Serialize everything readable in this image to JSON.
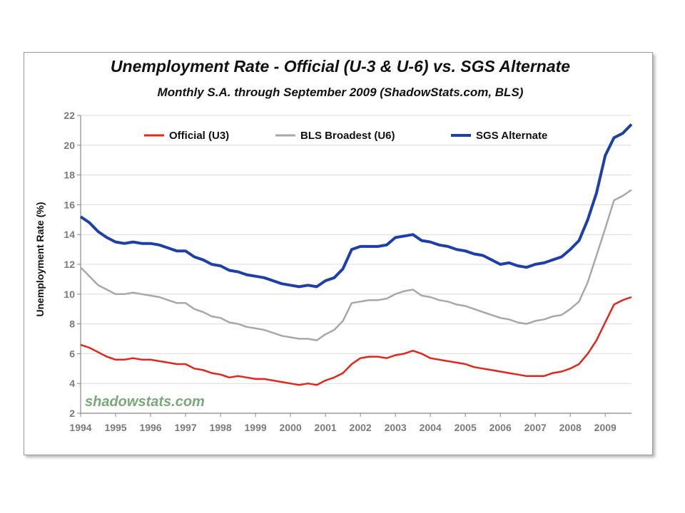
{
  "chart_data": {
    "type": "line",
    "title": "Unemployment Rate - Official (U-3 & U-6) vs. SGS Alternate",
    "subtitle": "Monthly S.A. through September 2009 (ShadowStats.com, BLS)",
    "ylabel": "Unemployment Rate (%)",
    "xlim": [
      1994,
      2009.75
    ],
    "ylim": [
      2,
      22
    ],
    "yticks": [
      2,
      4,
      6,
      8,
      10,
      12,
      14,
      16,
      18,
      20,
      22
    ],
    "xticks": [
      1994,
      1995,
      1996,
      1997,
      1998,
      1999,
      2000,
      2001,
      2002,
      2003,
      2004,
      2005,
      2006,
      2007,
      2008,
      2009
    ],
    "grid": true,
    "legend_position": "top",
    "watermark": "shadowstats.com",
    "series": [
      {
        "name": "Official (U3)",
        "color": "#e2261c",
        "x": [
          1994.0,
          1994.25,
          1994.5,
          1994.75,
          1995.0,
          1995.25,
          1995.5,
          1995.75,
          1996.0,
          1996.25,
          1996.5,
          1996.75,
          1997.0,
          1997.25,
          1997.5,
          1997.75,
          1998.0,
          1998.25,
          1998.5,
          1998.75,
          1999.0,
          1999.25,
          1999.5,
          1999.75,
          2000.0,
          2000.25,
          2000.5,
          2000.75,
          2001.0,
          2001.25,
          2001.5,
          2001.75,
          2002.0,
          2002.25,
          2002.5,
          2002.75,
          2003.0,
          2003.25,
          2003.5,
          2003.75,
          2004.0,
          2004.25,
          2004.5,
          2004.75,
          2005.0,
          2005.25,
          2005.5,
          2005.75,
          2006.0,
          2006.25,
          2006.5,
          2006.75,
          2007.0,
          2007.25,
          2007.5,
          2007.75,
          2008.0,
          2008.25,
          2008.5,
          2008.75,
          2009.0,
          2009.25,
          2009.5,
          2009.75
        ],
        "values": [
          6.6,
          6.4,
          6.1,
          5.8,
          5.6,
          5.6,
          5.7,
          5.6,
          5.6,
          5.5,
          5.4,
          5.3,
          5.3,
          5.0,
          4.9,
          4.7,
          4.6,
          4.4,
          4.5,
          4.4,
          4.3,
          4.3,
          4.2,
          4.1,
          4.0,
          3.9,
          4.0,
          3.9,
          4.2,
          4.4,
          4.7,
          5.3,
          5.7,
          5.8,
          5.8,
          5.7,
          5.9,
          6.0,
          6.2,
          6.0,
          5.7,
          5.6,
          5.5,
          5.4,
          5.3,
          5.1,
          5.0,
          4.9,
          4.8,
          4.7,
          4.6,
          4.5,
          4.5,
          4.5,
          4.7,
          4.8,
          5.0,
          5.3,
          6.0,
          6.9,
          8.1,
          9.3,
          9.6,
          9.8
        ]
      },
      {
        "name": "BLS Broadest (U6)",
        "color": "#a8a8a8",
        "x": [
          1994.0,
          1994.25,
          1994.5,
          1994.75,
          1995.0,
          1995.25,
          1995.5,
          1995.75,
          1996.0,
          1996.25,
          1996.5,
          1996.75,
          1997.0,
          1997.25,
          1997.5,
          1997.75,
          1998.0,
          1998.25,
          1998.5,
          1998.75,
          1999.0,
          1999.25,
          1999.5,
          1999.75,
          2000.0,
          2000.25,
          2000.5,
          2000.75,
          2001.0,
          2001.25,
          2001.5,
          2001.75,
          2002.0,
          2002.25,
          2002.5,
          2002.75,
          2003.0,
          2003.25,
          2003.5,
          2003.75,
          2004.0,
          2004.25,
          2004.5,
          2004.75,
          2005.0,
          2005.25,
          2005.5,
          2005.75,
          2006.0,
          2006.25,
          2006.5,
          2006.75,
          2007.0,
          2007.25,
          2007.5,
          2007.75,
          2008.0,
          2008.25,
          2008.5,
          2008.75,
          2009.0,
          2009.25,
          2009.5,
          2009.75
        ],
        "values": [
          11.8,
          11.2,
          10.6,
          10.3,
          10.0,
          10.0,
          10.1,
          10.0,
          9.9,
          9.8,
          9.6,
          9.4,
          9.4,
          9.0,
          8.8,
          8.5,
          8.4,
          8.1,
          8.0,
          7.8,
          7.7,
          7.6,
          7.4,
          7.2,
          7.1,
          7.0,
          7.0,
          6.9,
          7.3,
          7.6,
          8.2,
          9.4,
          9.5,
          9.6,
          9.6,
          9.7,
          10.0,
          10.2,
          10.3,
          9.9,
          9.8,
          9.6,
          9.5,
          9.3,
          9.2,
          9.0,
          8.8,
          8.6,
          8.4,
          8.3,
          8.1,
          8.0,
          8.2,
          8.3,
          8.5,
          8.6,
          9.0,
          9.5,
          10.8,
          12.6,
          14.4,
          16.3,
          16.6,
          17.0
        ]
      },
      {
        "name": "SGS Alternate",
        "color": "#1f3fa8",
        "x": [
          1994.0,
          1994.25,
          1994.5,
          1994.75,
          1995.0,
          1995.25,
          1995.5,
          1995.75,
          1996.0,
          1996.25,
          1996.5,
          1996.75,
          1997.0,
          1997.25,
          1997.5,
          1997.75,
          1998.0,
          1998.25,
          1998.5,
          1998.75,
          1999.0,
          1999.25,
          1999.5,
          1999.75,
          2000.0,
          2000.25,
          2000.5,
          2000.75,
          2001.0,
          2001.25,
          2001.5,
          2001.75,
          2002.0,
          2002.25,
          2002.5,
          2002.75,
          2003.0,
          2003.25,
          2003.5,
          2003.75,
          2004.0,
          2004.25,
          2004.5,
          2004.75,
          2005.0,
          2005.25,
          2005.5,
          2005.75,
          2006.0,
          2006.25,
          2006.5,
          2006.75,
          2007.0,
          2007.25,
          2007.5,
          2007.75,
          2008.0,
          2008.25,
          2008.5,
          2008.75,
          2009.0,
          2009.25,
          2009.5,
          2009.75
        ],
        "values": [
          15.2,
          14.8,
          14.2,
          13.8,
          13.5,
          13.4,
          13.5,
          13.4,
          13.4,
          13.3,
          13.1,
          12.9,
          12.9,
          12.5,
          12.3,
          12.0,
          11.9,
          11.6,
          11.5,
          11.3,
          11.2,
          11.1,
          10.9,
          10.7,
          10.6,
          10.5,
          10.6,
          10.5,
          10.9,
          11.1,
          11.7,
          13.0,
          13.2,
          13.2,
          13.2,
          13.3,
          13.8,
          13.9,
          14.0,
          13.6,
          13.5,
          13.3,
          13.2,
          13.0,
          12.9,
          12.7,
          12.6,
          12.3,
          12.0,
          12.1,
          11.9,
          11.8,
          12.0,
          12.1,
          12.3,
          12.5,
          13.0,
          13.6,
          15.0,
          16.8,
          19.3,
          20.5,
          20.8,
          21.4
        ]
      }
    ]
  }
}
